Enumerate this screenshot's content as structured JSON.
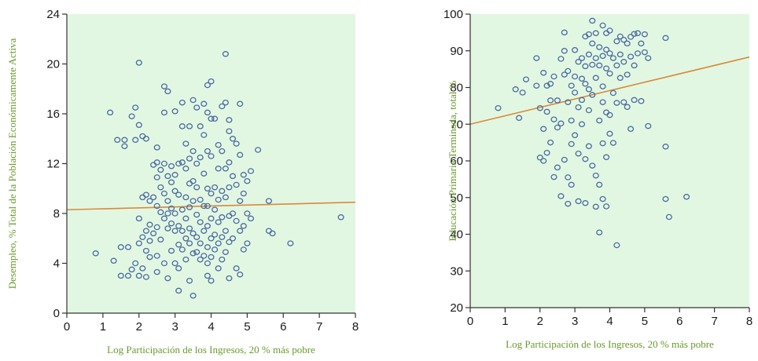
{
  "colors": {
    "plot_background": "#e2f7e2",
    "marker": "#4a6aa0",
    "trend_line": "#d98a3a",
    "axis_title": "#6a9a2c",
    "axis": "#333333"
  },
  "chart_data": [
    {
      "type": "scatter",
      "xlabel": "Log Participación de los Ingresos, 20 % más pobre",
      "ylabel": "Desempleo, % Total de la Población Económicamente Activa",
      "xlim": [
        0,
        8
      ],
      "ylim": [
        0,
        24
      ],
      "xticks": [
        0,
        1,
        2,
        3,
        4,
        5,
        6,
        7,
        8
      ],
      "yticks": [
        0,
        4,
        8,
        12,
        16,
        20,
        24
      ],
      "grid": false,
      "trend_line": {
        "x": [
          0,
          8
        ],
        "y": [
          8.3,
          8.9
        ]
      },
      "points": [
        [
          0.8,
          4.8
        ],
        [
          1.2,
          16.1
        ],
        [
          1.3,
          4.2
        ],
        [
          1.4,
          13.9
        ],
        [
          1.5,
          5.3
        ],
        [
          1.5,
          3.0
        ],
        [
          1.6,
          13.9
        ],
        [
          1.6,
          13.4
        ],
        [
          1.7,
          3.0
        ],
        [
          1.7,
          5.3
        ],
        [
          1.8,
          3.5
        ],
        [
          1.8,
          15.8
        ],
        [
          1.9,
          16.5
        ],
        [
          1.9,
          13.9
        ],
        [
          1.9,
          4.0
        ],
        [
          2.0,
          20.1
        ],
        [
          2.0,
          15.1
        ],
        [
          2.0,
          7.6
        ],
        [
          2.0,
          5.6
        ],
        [
          2.0,
          3.0
        ],
        [
          2.1,
          14.2
        ],
        [
          2.1,
          9.3
        ],
        [
          2.1,
          6.1
        ],
        [
          2.1,
          3.6
        ],
        [
          2.2,
          14.0
        ],
        [
          2.2,
          9.5
        ],
        [
          2.2,
          6.6
        ],
        [
          2.2,
          5.0
        ],
        [
          2.2,
          2.9
        ],
        [
          2.3,
          9.0
        ],
        [
          2.3,
          7.1
        ],
        [
          2.3,
          5.8
        ],
        [
          2.3,
          4.5
        ],
        [
          2.4,
          11.9
        ],
        [
          2.4,
          9.3
        ],
        [
          2.4,
          6.4
        ],
        [
          2.5,
          13.3
        ],
        [
          2.5,
          12.1
        ],
        [
          2.5,
          10.9
        ],
        [
          2.5,
          8.6
        ],
        [
          2.5,
          6.9
        ],
        [
          2.5,
          4.6
        ],
        [
          2.5,
          3.3
        ],
        [
          2.6,
          11.5
        ],
        [
          2.6,
          10.1
        ],
        [
          2.6,
          8.1
        ],
        [
          2.6,
          5.9
        ],
        [
          2.7,
          18.2
        ],
        [
          2.7,
          16.1
        ],
        [
          2.7,
          12.0
        ],
        [
          2.7,
          9.6
        ],
        [
          2.7,
          7.6
        ],
        [
          2.7,
          4.0
        ],
        [
          2.8,
          17.8
        ],
        [
          2.8,
          11.0
        ],
        [
          2.8,
          9.0
        ],
        [
          2.8,
          8.0
        ],
        [
          2.8,
          6.8
        ],
        [
          2.8,
          2.8
        ],
        [
          2.9,
          11.8
        ],
        [
          2.9,
          10.5
        ],
        [
          2.9,
          8.4
        ],
        [
          2.9,
          7.2
        ],
        [
          2.9,
          5.0
        ],
        [
          3.0,
          16.2
        ],
        [
          3.0,
          11.1
        ],
        [
          3.0,
          9.8
        ],
        [
          3.0,
          8.0
        ],
        [
          3.0,
          6.6
        ],
        [
          3.0,
          4.0
        ],
        [
          3.1,
          12.0
        ],
        [
          3.1,
          9.5
        ],
        [
          3.1,
          7.0
        ],
        [
          3.1,
          5.5
        ],
        [
          3.1,
          3.6
        ],
        [
          3.1,
          1.8
        ],
        [
          3.2,
          16.9
        ],
        [
          3.2,
          15.0
        ],
        [
          3.2,
          12.1
        ],
        [
          3.2,
          8.3
        ],
        [
          3.2,
          6.6
        ],
        [
          3.2,
          5.1
        ],
        [
          3.3,
          13.6
        ],
        [
          3.3,
          11.6
        ],
        [
          3.3,
          9.3
        ],
        [
          3.3,
          7.6
        ],
        [
          3.3,
          6.0
        ],
        [
          3.3,
          4.3
        ],
        [
          3.4,
          15.0
        ],
        [
          3.4,
          12.4
        ],
        [
          3.4,
          10.4
        ],
        [
          3.4,
          8.5
        ],
        [
          3.4,
          6.8
        ],
        [
          3.4,
          5.6
        ],
        [
          3.4,
          2.6
        ],
        [
          3.5,
          17.1
        ],
        [
          3.5,
          13.0
        ],
        [
          3.5,
          10.6
        ],
        [
          3.5,
          9.0
        ],
        [
          3.5,
          6.4
        ],
        [
          3.5,
          4.8
        ],
        [
          3.5,
          1.4
        ],
        [
          3.6,
          16.5
        ],
        [
          3.6,
          12.0
        ],
        [
          3.6,
          10.1
        ],
        [
          3.6,
          7.9
        ],
        [
          3.6,
          6.1
        ],
        [
          3.6,
          4.9
        ],
        [
          3.7,
          15.0
        ],
        [
          3.7,
          12.5
        ],
        [
          3.7,
          9.1
        ],
        [
          3.7,
          7.3
        ],
        [
          3.7,
          5.6
        ],
        [
          3.7,
          4.3
        ],
        [
          3.8,
          16.8
        ],
        [
          3.8,
          14.3
        ],
        [
          3.8,
          11.2
        ],
        [
          3.8,
          8.6
        ],
        [
          3.8,
          6.6
        ],
        [
          3.8,
          4.6
        ],
        [
          3.9,
          18.3
        ],
        [
          3.9,
          16.1
        ],
        [
          3.9,
          13.0
        ],
        [
          3.9,
          10.0
        ],
        [
          3.9,
          8.6
        ],
        [
          3.9,
          7.0
        ],
        [
          3.9,
          5.3
        ],
        [
          3.9,
          4.0
        ],
        [
          3.9,
          3.0
        ],
        [
          4.0,
          18.6
        ],
        [
          4.0,
          15.6
        ],
        [
          4.0,
          12.6
        ],
        [
          4.0,
          9.6
        ],
        [
          4.0,
          7.6
        ],
        [
          4.0,
          6.0
        ],
        [
          4.0,
          4.5
        ],
        [
          4.0,
          2.6
        ],
        [
          4.1,
          15.6
        ],
        [
          4.1,
          10.1
        ],
        [
          4.1,
          8.3
        ],
        [
          4.1,
          6.3
        ],
        [
          4.1,
          5.1
        ],
        [
          4.2,
          13.5
        ],
        [
          4.2,
          11.6
        ],
        [
          4.2,
          9.1
        ],
        [
          4.2,
          7.3
        ],
        [
          4.2,
          5.6
        ],
        [
          4.2,
          3.6
        ],
        [
          4.3,
          16.6
        ],
        [
          4.3,
          13.0
        ],
        [
          4.3,
          9.8
        ],
        [
          4.3,
          7.7
        ],
        [
          4.3,
          6.1
        ],
        [
          4.3,
          4.3
        ],
        [
          4.4,
          20.8
        ],
        [
          4.4,
          16.9
        ],
        [
          4.4,
          11.6
        ],
        [
          4.4,
          9.3
        ],
        [
          4.4,
          6.6
        ],
        [
          4.4,
          4.9
        ],
        [
          4.5,
          15.5
        ],
        [
          4.5,
          14.6
        ],
        [
          4.5,
          12.1
        ],
        [
          4.5,
          10.1
        ],
        [
          4.5,
          7.8
        ],
        [
          4.5,
          5.7
        ],
        [
          4.5,
          2.8
        ],
        [
          4.6,
          14.0
        ],
        [
          4.6,
          11.0
        ],
        [
          4.6,
          8.0
        ],
        [
          4.6,
          6.0
        ],
        [
          4.7,
          13.6
        ],
        [
          4.7,
          10.3
        ],
        [
          4.7,
          7.4
        ],
        [
          4.7,
          3.6
        ],
        [
          4.8,
          16.8
        ],
        [
          4.8,
          12.7
        ],
        [
          4.8,
          9.0
        ],
        [
          4.8,
          6.6
        ],
        [
          4.8,
          3.1
        ],
        [
          4.9,
          11.1
        ],
        [
          4.9,
          9.6
        ],
        [
          4.9,
          7.0
        ],
        [
          4.9,
          5.1
        ],
        [
          5.0,
          10.6
        ],
        [
          5.0,
          8.0
        ],
        [
          5.0,
          5.6
        ],
        [
          5.1,
          11.4
        ],
        [
          5.1,
          7.6
        ],
        [
          5.3,
          13.1
        ],
        [
          5.6,
          9.0
        ],
        [
          5.6,
          6.6
        ],
        [
          5.7,
          6.4
        ],
        [
          6.2,
          5.6
        ],
        [
          7.6,
          7.7
        ]
      ]
    },
    {
      "type": "scatter",
      "xlabel": "Log Participación de los Ingresos, 20 % más pobre",
      "ylabel": "Educación Primaria Terminada, total %",
      "xlim": [
        0,
        8
      ],
      "ylim": [
        20,
        100
      ],
      "xticks": [
        0,
        1,
        2,
        3,
        4,
        5,
        6,
        7,
        8
      ],
      "yticks": [
        20,
        30,
        40,
        50,
        60,
        70,
        80,
        90,
        100
      ],
      "grid": false,
      "trend_line": {
        "x": [
          0,
          8
        ],
        "y": [
          70,
          88.3
        ]
      },
      "points": [
        [
          0.8,
          74.4
        ],
        [
          1.3,
          79.5
        ],
        [
          1.4,
          71.7
        ],
        [
          1.5,
          78.6
        ],
        [
          1.6,
          82.2
        ],
        [
          1.9,
          88.0
        ],
        [
          1.9,
          80.5
        ],
        [
          2.0,
          60.9
        ],
        [
          2.0,
          74.4
        ],
        [
          2.1,
          60.0
        ],
        [
          2.1,
          68.7
        ],
        [
          2.1,
          84.0
        ],
        [
          2.2,
          80.5
        ],
        [
          2.2,
          73.4
        ],
        [
          2.2,
          62.2
        ],
        [
          2.3,
          81.0
        ],
        [
          2.3,
          76.5
        ],
        [
          2.3,
          65.0
        ],
        [
          2.4,
          55.6
        ],
        [
          2.4,
          71.3
        ],
        [
          2.4,
          83.0
        ],
        [
          2.5,
          58.2
        ],
        [
          2.5,
          69.1
        ],
        [
          2.5,
          76.5
        ],
        [
          2.6,
          50.4
        ],
        [
          2.6,
          70.2
        ],
        [
          2.6,
          87.8
        ],
        [
          2.7,
          90.0
        ],
        [
          2.7,
          95.0
        ],
        [
          2.7,
          83.5
        ],
        [
          2.7,
          60.3
        ],
        [
          2.8,
          84.5
        ],
        [
          2.8,
          76.0
        ],
        [
          2.8,
          55.5
        ],
        [
          2.8,
          48.3
        ],
        [
          2.9,
          80.5
        ],
        [
          2.9,
          71.0
        ],
        [
          2.9,
          64.6
        ],
        [
          2.9,
          53.5
        ],
        [
          3.0,
          90.2
        ],
        [
          3.0,
          83.0
        ],
        [
          3.0,
          78.6
        ],
        [
          3.0,
          67.0
        ],
        [
          3.1,
          87.0
        ],
        [
          3.1,
          74.6
        ],
        [
          3.1,
          62.0
        ],
        [
          3.1,
          49.0
        ],
        [
          3.2,
          88.0
        ],
        [
          3.2,
          82.4
        ],
        [
          3.2,
          76.6
        ],
        [
          3.2,
          70.0
        ],
        [
          3.3,
          93.9
        ],
        [
          3.3,
          85.8
        ],
        [
          3.3,
          81.0
        ],
        [
          3.3,
          60.5
        ],
        [
          3.3,
          48.5
        ],
        [
          3.4,
          94.5
        ],
        [
          3.4,
          89.0
        ],
        [
          3.4,
          79.5
        ],
        [
          3.4,
          73.8
        ],
        [
          3.4,
          64.0
        ],
        [
          3.5,
          98.2
        ],
        [
          3.5,
          92.0
        ],
        [
          3.5,
          86.2
        ],
        [
          3.5,
          78.0
        ],
        [
          3.5,
          58.7
        ],
        [
          3.6,
          94.8
        ],
        [
          3.6,
          88.0
        ],
        [
          3.6,
          82.6
        ],
        [
          3.6,
          56.0
        ],
        [
          3.6,
          47.5
        ],
        [
          3.7,
          91.0
        ],
        [
          3.7,
          86.0
        ],
        [
          3.7,
          71.0
        ],
        [
          3.7,
          53.5
        ],
        [
          3.7,
          40.5
        ],
        [
          3.8,
          96.9
        ],
        [
          3.8,
          88.6
        ],
        [
          3.8,
          80.3
        ],
        [
          3.8,
          76.0
        ],
        [
          3.8,
          64.8
        ],
        [
          3.8,
          49.6
        ],
        [
          3.9,
          94.8
        ],
        [
          3.9,
          90.3
        ],
        [
          3.9,
          85.2
        ],
        [
          3.9,
          73.2
        ],
        [
          3.9,
          61.0
        ],
        [
          3.9,
          47.6
        ],
        [
          4.0,
          95.5
        ],
        [
          4.0,
          89.3
        ],
        [
          4.0,
          83.8
        ],
        [
          4.0,
          72.5
        ],
        [
          4.0,
          67.4
        ],
        [
          4.1,
          88.0
        ],
        [
          4.1,
          78.5
        ],
        [
          4.1,
          64.9
        ],
        [
          4.2,
          92.6
        ],
        [
          4.2,
          86.0
        ],
        [
          4.2,
          75.8
        ],
        [
          4.2,
          37.0
        ],
        [
          4.3,
          93.9
        ],
        [
          4.3,
          89.0
        ],
        [
          4.3,
          82.6
        ],
        [
          4.4,
          93.0
        ],
        [
          4.4,
          87.0
        ],
        [
          4.4,
          76.0
        ],
        [
          4.5,
          92.0
        ],
        [
          4.5,
          83.5
        ],
        [
          4.5,
          74.7
        ],
        [
          4.6,
          93.8
        ],
        [
          4.6,
          88.4
        ],
        [
          4.6,
          68.7
        ],
        [
          4.7,
          94.6
        ],
        [
          4.7,
          86.0
        ],
        [
          4.7,
          76.6
        ],
        [
          4.8,
          94.8
        ],
        [
          4.8,
          89.3
        ],
        [
          4.9,
          92.0
        ],
        [
          4.9,
          76.3
        ],
        [
          5.0,
          94.5
        ],
        [
          5.0,
          89.6
        ],
        [
          5.1,
          88.0
        ],
        [
          5.1,
          69.5
        ],
        [
          5.6,
          93.5
        ],
        [
          5.6,
          63.9
        ],
        [
          5.6,
          49.6
        ],
        [
          5.7,
          44.7
        ],
        [
          6.2,
          50.2
        ]
      ]
    }
  ]
}
